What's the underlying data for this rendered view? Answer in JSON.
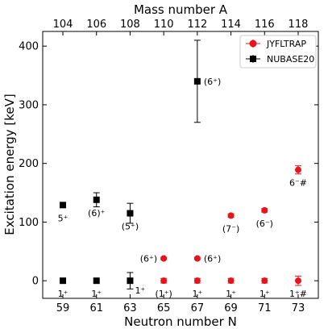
{
  "chart_data": {
    "type": "scatter",
    "top_axis_label": "Mass number A",
    "xlabel": "Neutron number N",
    "ylabel": "Excitation energy [keV]",
    "xlim": [
      57.8,
      74.2
    ],
    "ylim": [
      -30,
      425
    ],
    "bottom_ticks": [
      "59",
      "61",
      "63",
      "65",
      "67",
      "69",
      "71",
      "73"
    ],
    "top_ticks": [
      "104",
      "106",
      "108",
      "110",
      "112",
      "114",
      "116",
      "118"
    ],
    "y_ticks": [
      "0",
      "100",
      "200",
      "300",
      "400"
    ],
    "legend": {
      "position": "top-right",
      "entries": [
        "JYFLTRAP",
        "NUBASE20"
      ]
    },
    "series": [
      {
        "name": "JYFLTRAP",
        "color": "#e8141b",
        "marker": "circle",
        "points": [
          {
            "x": 65,
            "y": 0,
            "err": 4,
            "label": "(1⁺)",
            "label_pos": "below"
          },
          {
            "x": 65,
            "y": 38,
            "err": 2,
            "label": "(6⁺)",
            "label_pos": "left"
          },
          {
            "x": 67,
            "y": 0,
            "err": 4,
            "label": "1⁺",
            "label_pos": "below"
          },
          {
            "x": 67,
            "y": 38,
            "err": 2,
            "label": "(6⁺)",
            "label_pos": "right"
          },
          {
            "x": 69,
            "y": 0,
            "err": 4,
            "label": "1⁺",
            "label_pos": "below"
          },
          {
            "x": 69,
            "y": 111,
            "err": 3,
            "label": "(7⁻)",
            "label_pos": "below"
          },
          {
            "x": 71,
            "y": 0,
            "err": 4,
            "label": "1⁺",
            "label_pos": "below"
          },
          {
            "x": 71,
            "y": 120,
            "err": 3,
            "label": "(6⁻)",
            "label_pos": "below"
          },
          {
            "x": 73,
            "y": 0,
            "err": 8,
            "label": "1⁺#",
            "label_pos": "below"
          },
          {
            "x": 73,
            "y": 189,
            "err": 7,
            "label": "6⁻#",
            "label_pos": "below"
          }
        ]
      },
      {
        "name": "NUBASE20",
        "color": "#000000",
        "marker": "square",
        "points": [
          {
            "x": 59,
            "y": 0,
            "err": 0,
            "label": "1⁺",
            "label_pos": "below"
          },
          {
            "x": 59,
            "y": 129,
            "err": 0,
            "label": "5⁺",
            "label_pos": "below"
          },
          {
            "x": 61,
            "y": 0,
            "err": 0,
            "label": "1⁺",
            "label_pos": "below"
          },
          {
            "x": 61,
            "y": 138,
            "err": 12,
            "label": "(6)⁺",
            "label_pos": "below"
          },
          {
            "x": 63,
            "y": 0,
            "err": 14,
            "label": "1⁺",
            "label_pos": "right-below"
          },
          {
            "x": 63,
            "y": 115,
            "err": 17,
            "label": "(5⁺)",
            "label_pos": "below"
          },
          {
            "x": 67,
            "y": 340,
            "err": 70,
            "label": "(6⁺)",
            "label_pos": "right"
          }
        ]
      }
    ]
  }
}
